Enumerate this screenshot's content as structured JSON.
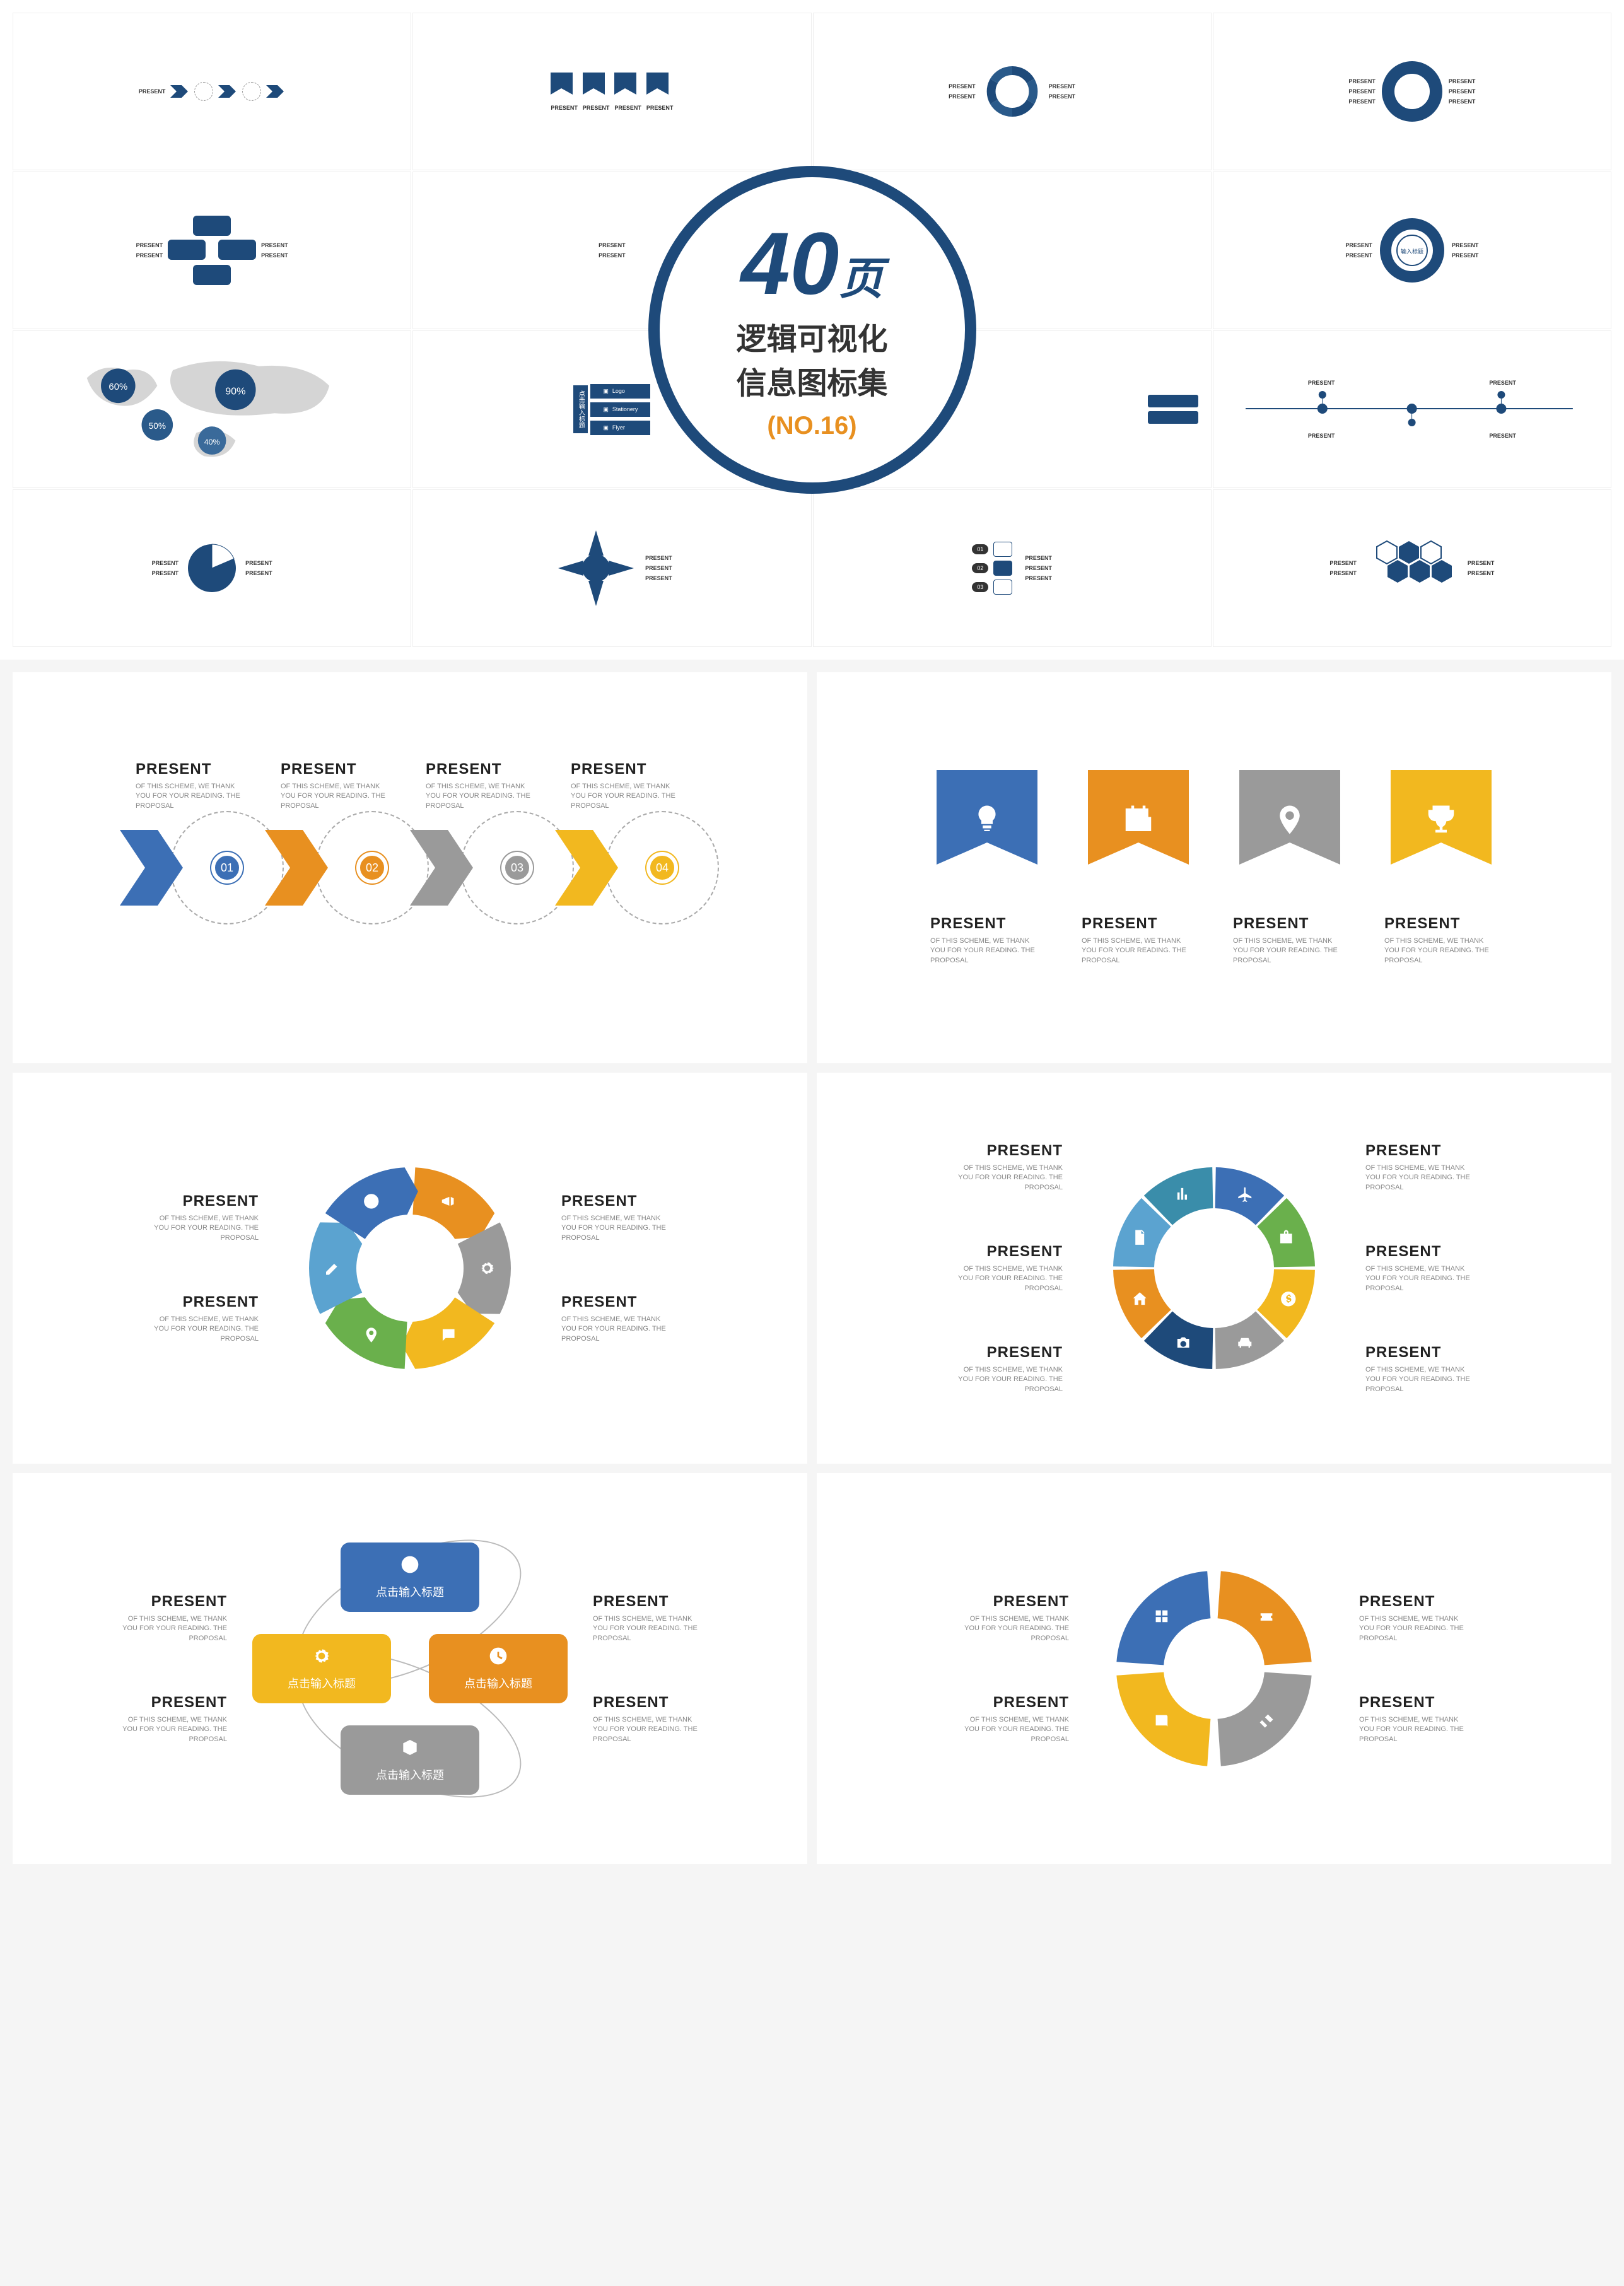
{
  "badge": {
    "number": "40",
    "suffix": "页",
    "line1": "逻辑可视化",
    "line2": "信息图标集",
    "sub": "(NO.16)"
  },
  "colors": {
    "blue": "#3c6fb5",
    "orange": "#e89020",
    "gray": "#9a9a9a",
    "yellow": "#f2b81f",
    "green": "#6ab04c",
    "navy": "#1e4a7a",
    "light_blue": "#5ba3d0",
    "teal": "#3a8daa"
  },
  "common": {
    "title": "PRESENT",
    "desc": "OF THIS SCHEME, WE THANK YOU FOR YOUR READING. THE PROPOSAL"
  },
  "slide1": {
    "type": "arrow-circles",
    "items": [
      {
        "num": "01",
        "color": "#3c6fb5"
      },
      {
        "num": "02",
        "color": "#e89020"
      },
      {
        "num": "03",
        "color": "#9a9a9a"
      },
      {
        "num": "04",
        "color": "#f2b81f"
      }
    ]
  },
  "slide2": {
    "type": "ribbons",
    "items": [
      {
        "icon": "bulb",
        "color": "#3c6fb5"
      },
      {
        "icon": "calendar",
        "color": "#e89020"
      },
      {
        "icon": "pin",
        "color": "#9a9a9a"
      },
      {
        "icon": "trophy",
        "color": "#f2b81f"
      }
    ]
  },
  "slide3": {
    "type": "cycle-arrows-6",
    "segments": [
      {
        "color": "#e89020",
        "icon": "megaphone"
      },
      {
        "color": "#9a9a9a",
        "icon": "gear"
      },
      {
        "color": "#f2b81f",
        "icon": "chat"
      },
      {
        "color": "#6ab04c",
        "icon": "pin"
      },
      {
        "color": "#5ba3d0",
        "icon": "pencil"
      },
      {
        "color": "#3c6fb5",
        "icon": "target"
      }
    ]
  },
  "slide4": {
    "type": "donut-8",
    "segments": [
      {
        "color": "#3c6fb5",
        "icon": "plane"
      },
      {
        "color": "#6ab04c",
        "icon": "bag"
      },
      {
        "color": "#f2b81f",
        "icon": "money"
      },
      {
        "color": "#9a9a9a",
        "icon": "car"
      },
      {
        "color": "#1e4a7a",
        "icon": "camera"
      },
      {
        "color": "#e89020",
        "icon": "home"
      },
      {
        "color": "#5ba3d0",
        "icon": "doc"
      },
      {
        "color": "#3a8daa",
        "icon": "chart"
      }
    ]
  },
  "slide5": {
    "type": "four-boxes",
    "boxes": [
      {
        "label": "点击输入标题",
        "color": "#3c6fb5",
        "icon": "target"
      },
      {
        "label": "点击输入标题",
        "color": "#f2b81f",
        "icon": "gear"
      },
      {
        "label": "点击输入标题",
        "color": "#e89020",
        "icon": "clock"
      },
      {
        "label": "点击输入标题",
        "color": "#9a9a9a",
        "icon": "box"
      }
    ]
  },
  "slide6": {
    "type": "donut-4",
    "segments": [
      {
        "color": "#e89020",
        "icon": "ticket"
      },
      {
        "color": "#9a9a9a",
        "icon": "tools"
      },
      {
        "color": "#f2b81f",
        "icon": "book"
      },
      {
        "color": "#3c6fb5",
        "icon": "grid"
      }
    ]
  },
  "thumbs": {
    "labels": [
      "PRESENT",
      "PRESENT",
      "PRESENT",
      "PRESENT"
    ],
    "map_percents": [
      "60%",
      "50%",
      "90%",
      "40%"
    ],
    "sidebar_items": [
      "Logo",
      "Stationery",
      "Flyer"
    ],
    "sidebar_title": "点击输入标题",
    "ring_label": "输入标题",
    "list_nums": [
      "01",
      "02",
      "03"
    ]
  }
}
